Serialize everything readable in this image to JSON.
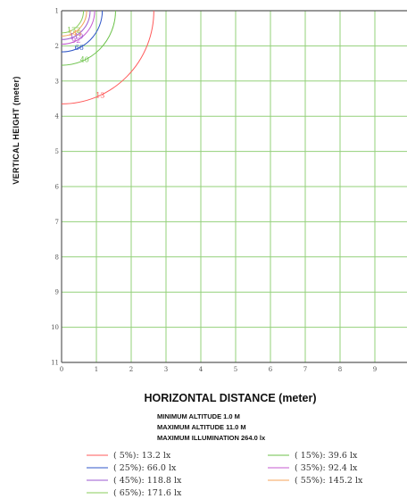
{
  "chart_data": {
    "type": "line",
    "title": "",
    "xlabel": "HORIZONTAL DISTANCE (meter)",
    "ylabel": "VERTICAL HEIGHT (meter)",
    "xlim": [
      0,
      10
    ],
    "ylim": [
      1,
      11
    ],
    "y_inverted": true,
    "grid": true,
    "x_ticks": [
      "0",
      "1",
      "2",
      "3",
      "4",
      "5",
      "6",
      "7",
      "8",
      "9"
    ],
    "y_ticks": [
      "1",
      "2",
      "3",
      "4",
      "5",
      "6",
      "7",
      "8",
      "9",
      "10",
      "11"
    ],
    "info": [
      "MINIMUM  ALTITUDE  1.0 M",
      "MAXIMUM  ALTITUDE  11.0 M",
      "MAXIMUM  ILLUMINATION 264.0 lx"
    ],
    "series": [
      {
        "name": "( 5%):  13.2 lx",
        "percent": 5,
        "lux": 13.2,
        "color": "#ff5a5a",
        "radius": 2.65,
        "label": "13",
        "legend_col": 0
      },
      {
        "name": "( 15%):  39.6 lx",
        "percent": 15,
        "lux": 39.6,
        "color": "#6cc24a",
        "radius": 1.55,
        "label": "40",
        "legend_col": 1
      },
      {
        "name": "( 25%):  66.0 lx",
        "percent": 25,
        "lux": 66.0,
        "color": "#2f56c8",
        "radius": 1.17,
        "label": "66",
        "legend_col": 0
      },
      {
        "name": "( 35%):  92.4 lx",
        "percent": 35,
        "lux": 92.4,
        "color": "#c45ad0",
        "radius": 0.95,
        "label": "92",
        "legend_col": 1
      },
      {
        "name": "( 45%):  118.8 lx",
        "percent": 45,
        "lux": 118.8,
        "color": "#9b59d0",
        "radius": 0.82,
        "label": "119",
        "legend_col": 0
      },
      {
        "name": "( 55%):  145.2 lx",
        "percent": 55,
        "lux": 145.2,
        "color": "#f4a35a",
        "radius": 0.72,
        "label": "145",
        "legend_col": 1
      },
      {
        "name": "( 65%):  171.6 lx",
        "percent": 65,
        "lux": 171.6,
        "color": "#8acc5a",
        "radius": 0.63,
        "label": "172",
        "legend_col": 0
      }
    ]
  }
}
